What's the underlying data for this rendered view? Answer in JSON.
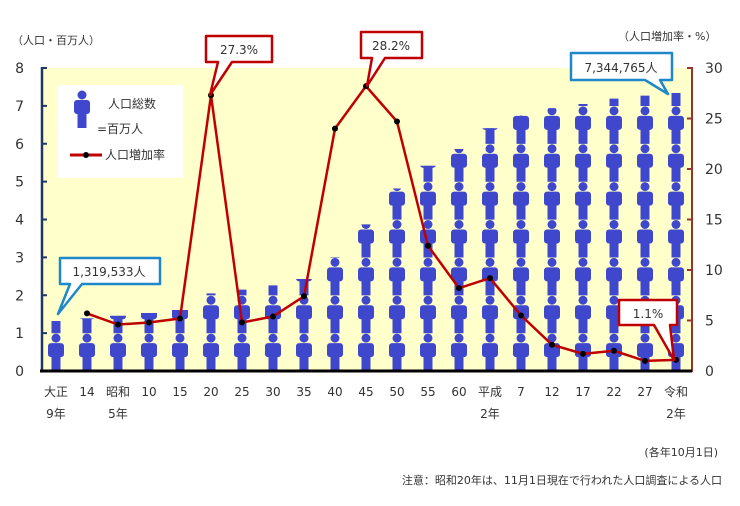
{
  "chart_data": {
    "type": "bar",
    "categories": [
      [
        "大正",
        "9年"
      ],
      [
        "14",
        ""
      ],
      [
        "昭和",
        "5年"
      ],
      [
        "10",
        ""
      ],
      [
        "15",
        ""
      ],
      [
        "20",
        ""
      ],
      [
        "25",
        ""
      ],
      [
        "30",
        ""
      ],
      [
        "35",
        ""
      ],
      [
        "40",
        ""
      ],
      [
        "45",
        ""
      ],
      [
        "50",
        ""
      ],
      [
        "55",
        ""
      ],
      [
        "60",
        ""
      ],
      [
        "平成",
        "2年"
      ],
      [
        "7",
        ""
      ],
      [
        "12",
        ""
      ],
      [
        "17",
        ""
      ],
      [
        "22",
        ""
      ],
      [
        "27",
        ""
      ],
      [
        "令和",
        "2年"
      ]
    ],
    "series": [
      {
        "name": "人口総数",
        "type": "pictogram-bar",
        "axis": "left",
        "color": "#3F48CC",
        "values": [
          1.32,
          1.39,
          1.46,
          1.53,
          1.61,
          2.05,
          2.15,
          2.26,
          2.43,
          3.01,
          3.87,
          4.82,
          5.42,
          5.86,
          6.41,
          6.76,
          6.94,
          7.05,
          7.19,
          7.27,
          7.34
        ]
      },
      {
        "name": "人口増加率",
        "type": "line",
        "axis": "right",
        "color": "#C00000",
        "values": [
          null,
          5.7,
          4.6,
          4.8,
          5.2,
          27.3,
          4.8,
          5.4,
          7.4,
          24.0,
          28.2,
          24.7,
          12.4,
          8.2,
          9.2,
          5.5,
          2.6,
          1.7,
          2.0,
          1.0,
          1.1
        ]
      }
    ],
    "y_left": {
      "label": "（人口・百万人）",
      "range": [
        0,
        8
      ],
      "ticks": [
        "0",
        "1",
        "2",
        "3",
        "4",
        "5",
        "6",
        "7",
        "8"
      ]
    },
    "y_right": {
      "label": "（人口増加率・%）",
      "range": [
        0,
        30
      ],
      "ticks": [
        "0",
        "5",
        "10",
        "15",
        "20",
        "25",
        "30"
      ]
    },
    "legend": {
      "position": "top-left",
      "pictogram_label": "人口総数",
      "pictogram_unit": "=百万人",
      "line_label": "人口増加率"
    },
    "annotations": {
      "first_pop": "1,319,533人",
      "last_pop": "7,344,765人",
      "peak1": "27.3%",
      "peak2": "28.2%",
      "last_rate": "1.1%"
    },
    "date_note": "(各年10月1日)",
    "footnote": "注意：昭和20年は、11月1日現在で行われた人口調査による人口",
    "background": "#FFFFCC",
    "grid": false
  }
}
